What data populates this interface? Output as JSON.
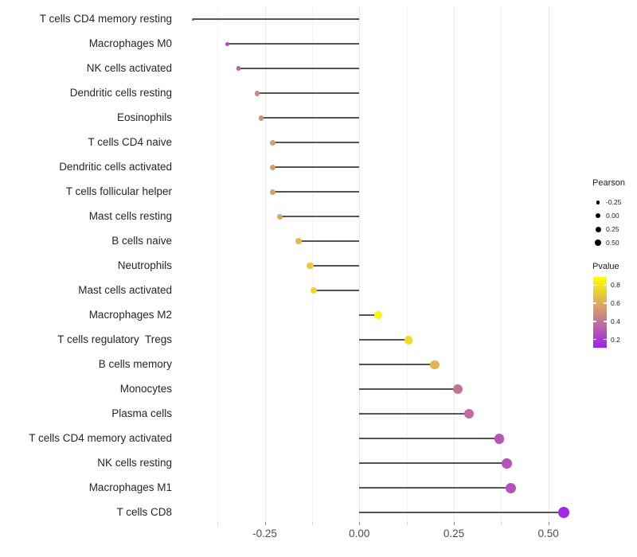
{
  "figure": {
    "background": "#FFFFFF"
  },
  "chart_data": {
    "type": "lollipop",
    "orientation": "horizontal",
    "title": "",
    "xlabel": "",
    "ylabel": "",
    "grid": "vertical-only",
    "baseline": 0,
    "categories": [
      "T cells CD4 memory resting",
      "Macrophages M0",
      "NK cells activated",
      "Dendritic cells resting",
      "Eosinophils",
      "T cells CD4 naive",
      "Dendritic cells activated",
      "T cells follicular helper",
      "Mast cells resting",
      "B cells naive",
      "Neutrophils",
      "Mast cells activated",
      "Macrophages M2",
      "T cells regulatory  Tregs",
      "B cells memory",
      "Monocytes",
      "Plasma cells",
      "T cells CD4 memory activated",
      "NK cells resting",
      "Macrophages M1",
      "T cells CD8"
    ],
    "series": [
      {
        "name": "Pearson",
        "values": [
          -0.44,
          -0.35,
          -0.32,
          -0.27,
          -0.26,
          -0.23,
          -0.23,
          -0.23,
          -0.21,
          -0.16,
          -0.13,
          -0.12,
          0.05,
          0.13,
          0.2,
          0.26,
          0.29,
          0.37,
          0.39,
          0.4,
          0.54
        ]
      },
      {
        "name": "Pvalue",
        "values": [
          0.15,
          0.25,
          0.33,
          0.47,
          0.5,
          0.54,
          0.54,
          0.55,
          0.58,
          0.65,
          0.7,
          0.74,
          0.85,
          0.76,
          0.63,
          0.4,
          0.37,
          0.3,
          0.29,
          0.28,
          0.13
        ]
      }
    ],
    "x_axis": {
      "range": [
        -0.485,
        0.585
      ],
      "ticks": [
        -0.25,
        0.0,
        0.25,
        0.5
      ],
      "tick_labels": [
        "-0.25",
        "0.00",
        "0.25",
        "0.50"
      ],
      "minor_ticks": [
        -0.375,
        -0.125,
        0.125,
        0.375
      ]
    },
    "size_scale": {
      "domain": [
        -0.44,
        0.54
      ]
    },
    "legend": {
      "size": {
        "title": "Pearson",
        "values": [
          -0.25,
          0.0,
          0.25,
          0.5
        ],
        "labels": [
          "-0.25",
          "0.00",
          "0.25",
          "0.50"
        ],
        "dot_color": "#000000"
      },
      "color": {
        "title": "Pvalue",
        "domain": [
          0.11,
          0.89
        ],
        "ticks": [
          0.8,
          0.6,
          0.4,
          0.2
        ],
        "tick_labels": [
          "0.8",
          "0.6",
          "0.4",
          "0.2"
        ],
        "low_color": "#A020F0",
        "high_color": "#FFFF00"
      }
    },
    "style": {
      "stem_color": "#545454",
      "grid_major_color": "#E8E8E8",
      "grid_minor_color": "#F4F4F4",
      "axis_tick_major_color": "#8C8C8C",
      "axis_tick_minor_color": "#D8D8D8",
      "axis_text_color": "#4D4D4D",
      "category_text_color": "#262626"
    }
  }
}
